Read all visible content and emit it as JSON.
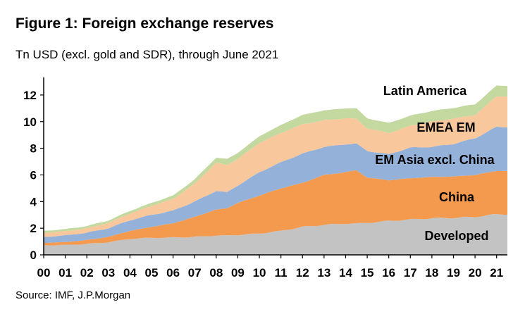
{
  "title": "Figure 1: Foreign exchange reserves",
  "subtitle": "Tn USD (excl. gold and SDR), through June 2021",
  "source": "Source: IMF, J.P.Morgan",
  "colors": {
    "Developed": "#c3c3c3",
    "China": "#f49a4e",
    "EM Asia excl. China": "#94b1d9",
    "EMEA EM": "#f8c89c",
    "Latin America": "#c3d9a0"
  },
  "chart_data": {
    "type": "area",
    "stacked": true,
    "xlim": [
      2000,
      2021.5
    ],
    "ylim": [
      0,
      13
    ],
    "yticks": [
      0,
      2,
      4,
      6,
      8,
      10,
      12
    ],
    "ytick_labels": [
      "0",
      "2",
      "4",
      "6",
      "8",
      "10",
      "12"
    ],
    "xticks": [
      2000,
      2001,
      2002,
      2003,
      2004,
      2005,
      2006,
      2007,
      2008,
      2009,
      2010,
      2011,
      2012,
      2013,
      2014,
      2015,
      2016,
      2017,
      2018,
      2019,
      2020,
      2021
    ],
    "xtick_labels": [
      "00",
      "01",
      "02",
      "03",
      "04",
      "05",
      "06",
      "07",
      "08",
      "09",
      "10",
      "11",
      "12",
      "13",
      "14",
      "15",
      "16",
      "17",
      "18",
      "19",
      "20",
      "21"
    ],
    "x": [
      2000,
      2001,
      2002,
      2003,
      2004,
      2005,
      2006,
      2007,
      2008,
      2008.5,
      2009,
      2010,
      2011,
      2012,
      2013,
      2014,
      2014.5,
      2015,
      2016,
      2017,
      2018,
      2019,
      2020,
      2021,
      2021.5
    ],
    "series": [
      {
        "name": "Developed",
        "values": [
          0.73,
          0.74,
          0.82,
          0.95,
          1.2,
          1.28,
          1.3,
          1.35,
          1.45,
          1.45,
          1.5,
          1.6,
          1.8,
          2.1,
          2.25,
          2.35,
          2.35,
          2.4,
          2.55,
          2.65,
          2.75,
          2.78,
          2.85,
          3.05,
          3.05
        ]
      },
      {
        "name": "China",
        "values": [
          0.17,
          0.22,
          0.29,
          0.4,
          0.6,
          0.82,
          1.07,
          1.5,
          1.95,
          2.05,
          2.4,
          2.85,
          3.2,
          3.3,
          3.75,
          3.85,
          4.0,
          3.4,
          3.05,
          3.1,
          3.1,
          3.1,
          3.15,
          3.25,
          3.25
        ]
      },
      {
        "name": "EM Asia excl. China",
        "values": [
          0.45,
          0.5,
          0.55,
          0.65,
          0.8,
          0.9,
          0.95,
          1.15,
          1.4,
          1.2,
          1.3,
          1.75,
          1.95,
          2.2,
          2.1,
          2.1,
          2.0,
          2.0,
          1.95,
          2.3,
          2.25,
          2.45,
          2.75,
          3.3,
          3.3
        ]
      },
      {
        "name": "EMEA EM",
        "values": [
          0.3,
          0.32,
          0.33,
          0.4,
          0.5,
          0.68,
          0.88,
          1.35,
          2.1,
          2.05,
          2.0,
          2.2,
          2.2,
          2.2,
          2.0,
          1.95,
          1.85,
          1.7,
          1.6,
          1.65,
          1.9,
          1.9,
          1.75,
          2.3,
          2.3
        ]
      },
      {
        "name": "Latin America",
        "values": [
          0.15,
          0.15,
          0.17,
          0.18,
          0.2,
          0.22,
          0.25,
          0.32,
          0.4,
          0.45,
          0.45,
          0.5,
          0.6,
          0.7,
          0.75,
          0.75,
          0.8,
          0.75,
          0.75,
          0.75,
          0.8,
          0.8,
          0.8,
          0.8,
          0.8
        ]
      }
    ],
    "series_labels": [
      "Developed",
      "China",
      "EM Asia excl. China",
      "EMEA EM",
      "Latin America"
    ]
  }
}
